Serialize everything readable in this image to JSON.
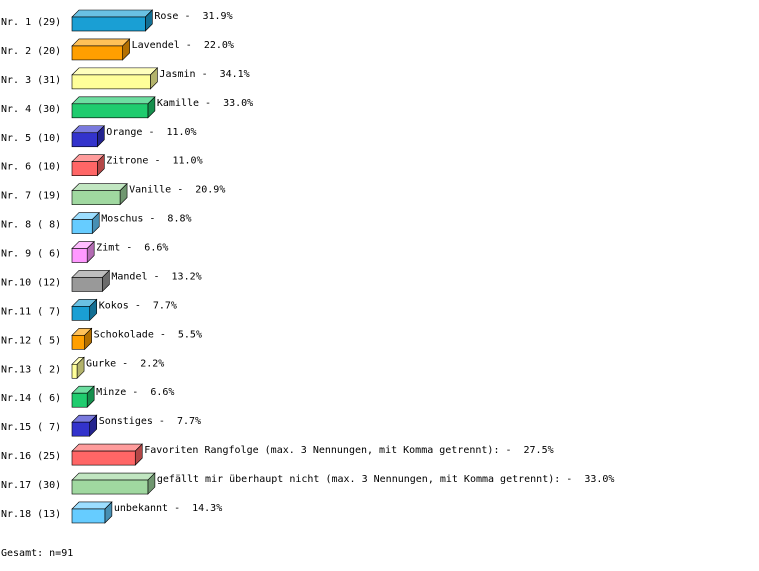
{
  "chart_data": {
    "type": "bar",
    "orientation": "horizontal",
    "three_d": true,
    "categories": [
      "Nr. 1 (29)",
      "Nr. 2 (20)",
      "Nr. 3 (31)",
      "Nr. 4 (30)",
      "Nr. 5 (10)",
      "Nr. 6 (10)",
      "Nr. 7 (19)",
      "Nr. 8 ( 8)",
      "Nr. 9 ( 6)",
      "Nr.10 (12)",
      "Nr.11 ( 7)",
      "Nr.12 ( 5)",
      "Nr.13 ( 2)",
      "Nr.14 ( 6)",
      "Nr.15 ( 7)",
      "Nr.16 (25)",
      "Nr.17 (30)",
      "Nr.18 (13)"
    ],
    "names": [
      "Rose -",
      "Lavendel -",
      "Jasmin -",
      "Kamille -",
      "Orange -",
      "Zitrone -",
      "Vanille -",
      "Moschus -",
      "Zimt -",
      "Mandel -",
      "Kokos -",
      "Schokolade -",
      "Gurke -",
      "Minze -",
      "Sonstiges -",
      "Favoriten Rangfolge (max. 3 Nennungen, mit Komma getrennt): -",
      "gefällt mir überhaupt nicht (max. 3 Nennungen, mit Komma getrennt): -",
      "unbekannt -"
    ],
    "values": [
      31.9,
      22.0,
      34.1,
      33.0,
      11.0,
      11.0,
      20.9,
      8.8,
      6.6,
      13.2,
      7.7,
      5.5,
      2.2,
      6.6,
      7.7,
      27.5,
      33.0,
      14.3
    ],
    "value_labels": [
      "31.9%",
      "22.0%",
      "34.1%",
      "33.0%",
      "11.0%",
      "11.0%",
      "20.9%",
      "8.8%",
      "6.6%",
      "13.2%",
      "7.7%",
      "5.5%",
      "2.2%",
      "6.6%",
      "7.7%",
      "27.5%",
      "33.0%",
      "14.3%"
    ],
    "colors": [
      "#1a9fd4",
      "#ff9f00",
      "#ffff99",
      "#1fcc6e",
      "#3333cc",
      "#ff6666",
      "#a0d8a0",
      "#66ccff",
      "#ff99ff",
      "#999999",
      "#1a9fd4",
      "#ff9f00",
      "#ffff99",
      "#1fcc6e",
      "#3333cc",
      "#ff6666",
      "#a0d8a0",
      "#66ccff"
    ],
    "footer": "Gesamt: n=91"
  }
}
